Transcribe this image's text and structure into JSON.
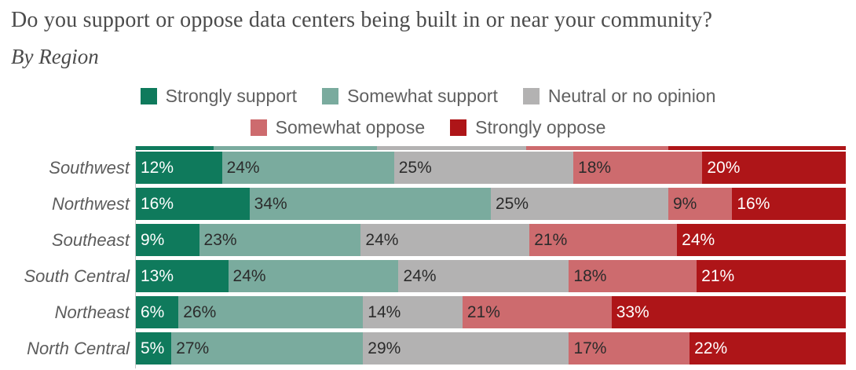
{
  "header": {
    "title": "Do you support or oppose data centers being built in or near your community?",
    "subtitle": "By Region"
  },
  "chart_data": {
    "type": "bar",
    "stacked": true,
    "orientation": "horizontal",
    "unit": "%",
    "title": "Do you support or oppose data centers being built in or near your community?",
    "subtitle": "By Region",
    "legend_position": "top-center",
    "axis_line_color": "#c6c6c6",
    "categories": [
      "Southwest",
      "Northwest",
      "Southeast",
      "South Central",
      "Northeast",
      "North Central"
    ],
    "series": [
      {
        "name": "Strongly support",
        "color": "#0f7a5c",
        "label_color": "#ffffff",
        "values": [
          12,
          16,
          9,
          13,
          6,
          5
        ]
      },
      {
        "name": "Somewhat support",
        "color": "#7aab9e",
        "label_color": "#2b2b2b",
        "values": [
          24,
          34,
          23,
          24,
          26,
          27
        ]
      },
      {
        "name": "Neutral or no opinion",
        "color": "#b3b2b2",
        "label_color": "#2b2b2b",
        "values": [
          25,
          25,
          24,
          24,
          14,
          29
        ]
      },
      {
        "name": "Somewhat oppose",
        "color": "#cd6b6e",
        "label_color": "#2b2b2b",
        "values": [
          18,
          9,
          21,
          18,
          21,
          17
        ]
      },
      {
        "name": "Strongly oppose",
        "color": "#ae1518",
        "label_color": "#ffffff",
        "values": [
          20,
          16,
          24,
          21,
          33,
          22
        ]
      }
    ],
    "legend_rows": [
      [
        0,
        1,
        2
      ],
      [
        3,
        4
      ]
    ],
    "partial_top_row_values": [
      11,
      23,
      21,
      20,
      25
    ]
  }
}
